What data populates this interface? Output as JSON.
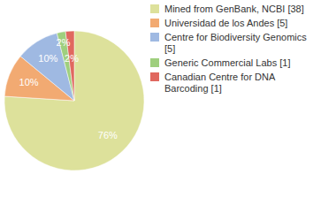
{
  "chart_data": {
    "type": "pie",
    "categories": [
      "Mined from GenBank, NCBI [38]",
      "Universidad de los Andes [5]",
      "Centre for Biodiversity Genomics [5]",
      "Generic Commercial Labs [1]",
      "Canadian Centre for DNA Barcoding [1]"
    ],
    "values": [
      76,
      10,
      10,
      2,
      2
    ],
    "value_labels": [
      "76%",
      "10%",
      "10%",
      "2%",
      "2%"
    ],
    "colors": [
      "#dde19b",
      "#f2aa72",
      "#9fb9e2",
      "#9fcf7e",
      "#e0685f"
    ],
    "data_labels": true,
    "legend": "right"
  }
}
